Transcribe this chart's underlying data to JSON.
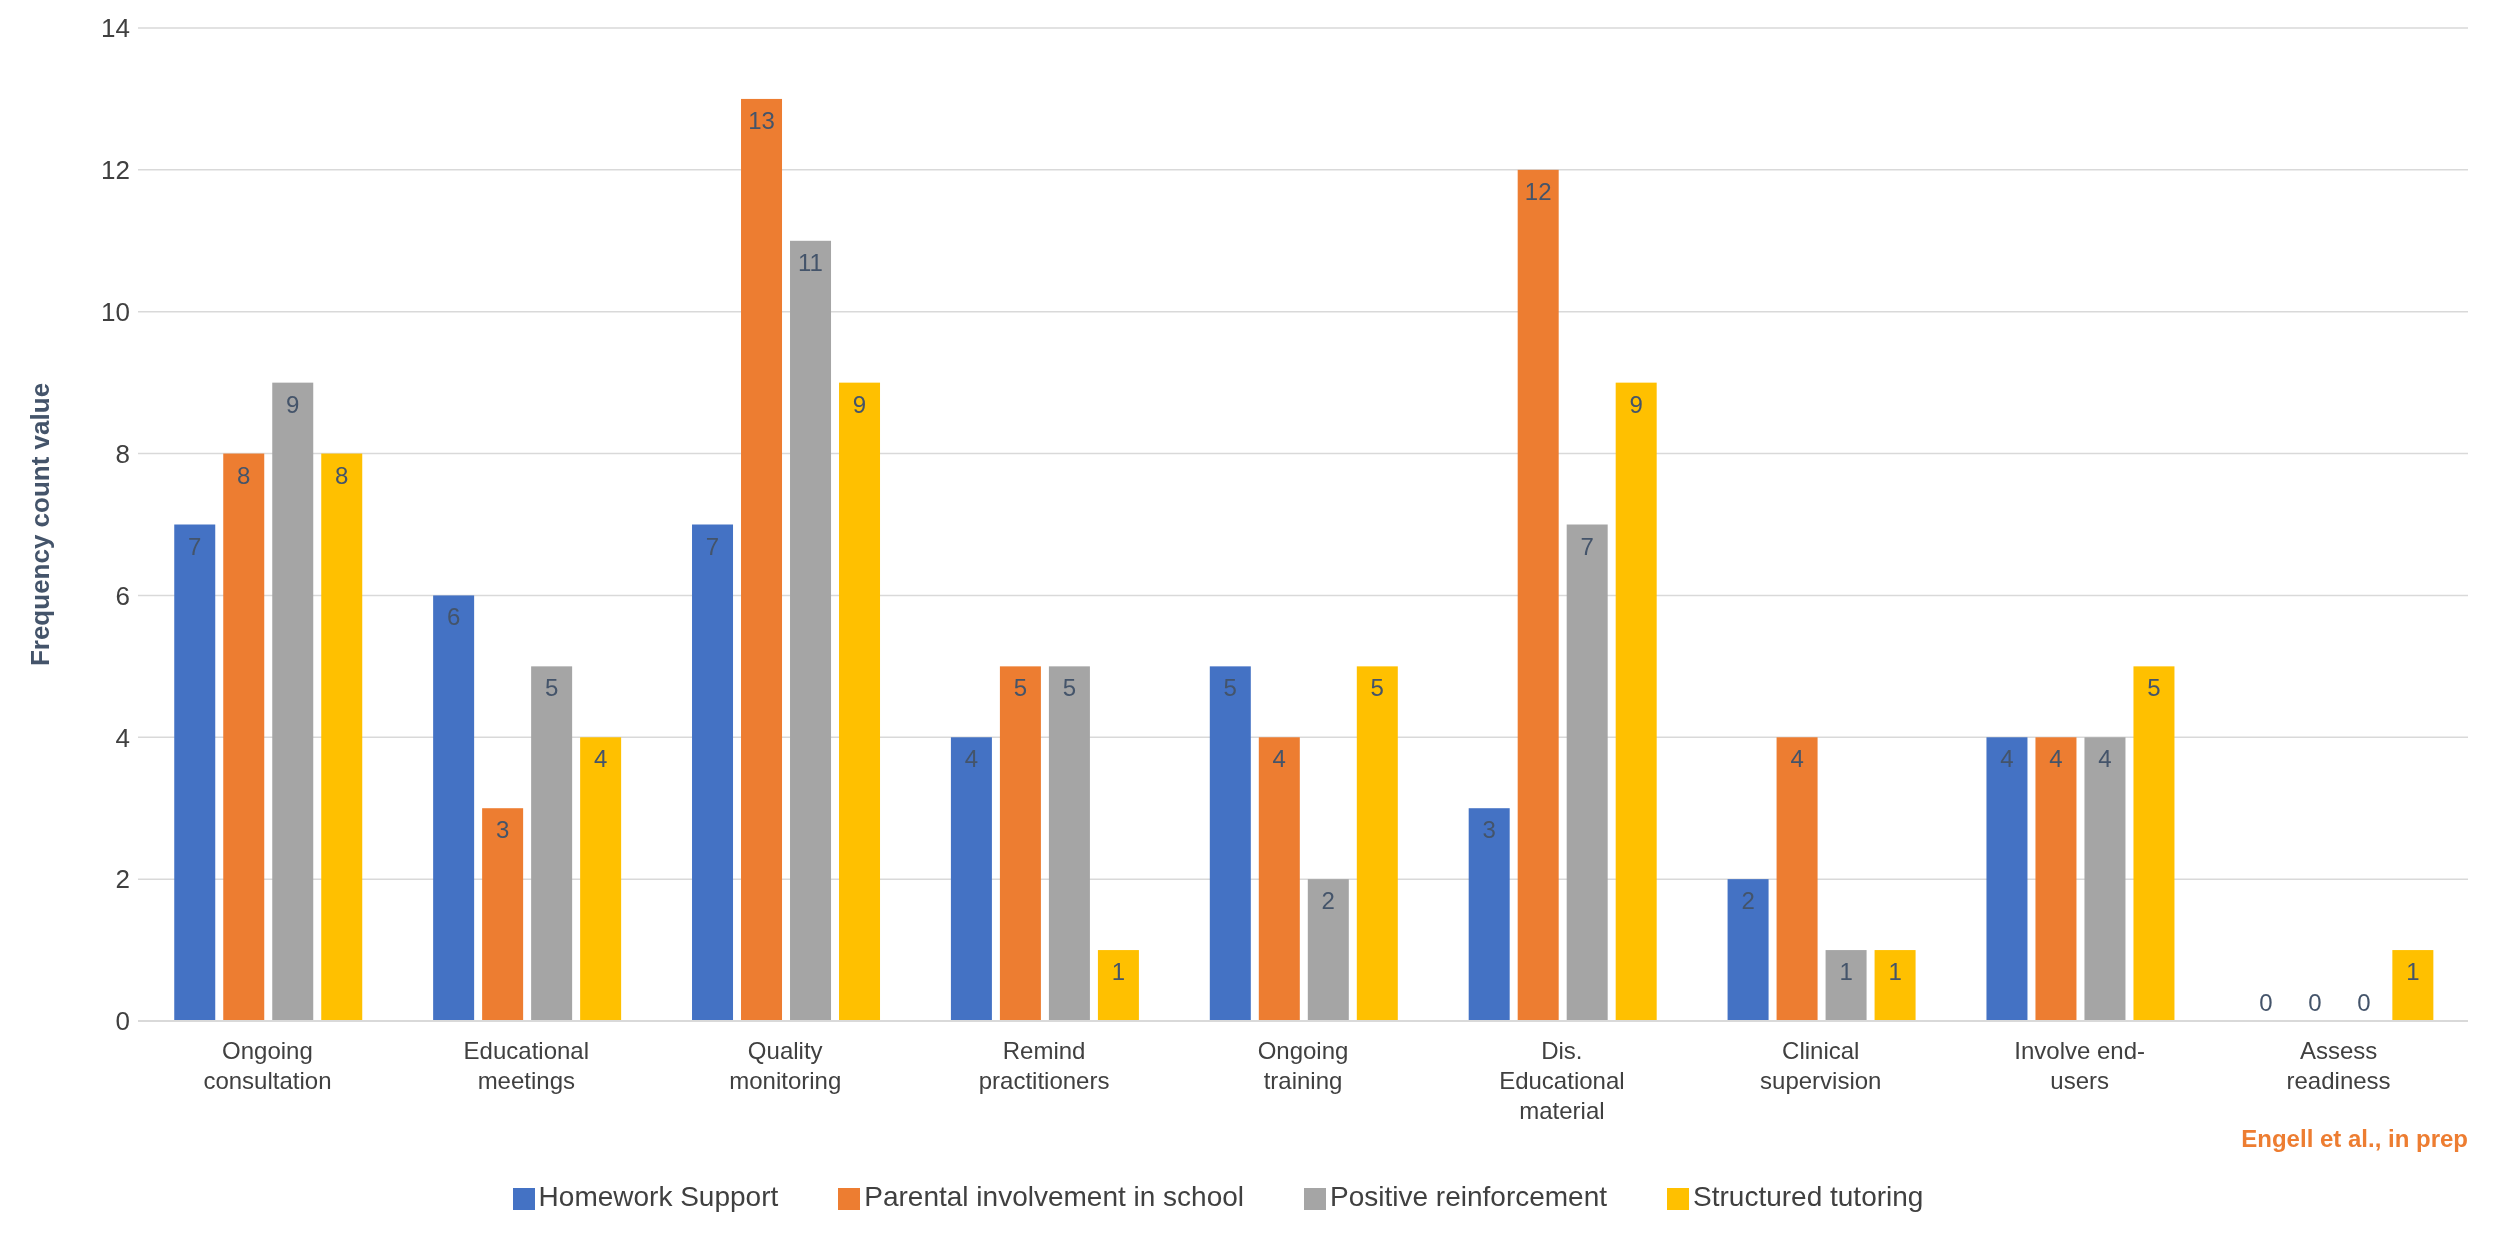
{
  "chart_data": {
    "type": "bar",
    "ylabel": "Frequency count value",
    "categories": [
      "Ongoing consultation",
      "Educational meetings",
      "Quality monitoring",
      "Remind practitioners",
      "Ongoing training",
      "Dis. Educational material",
      "Clinical supervision",
      "Involve end-users",
      "Assess readiness"
    ],
    "series": [
      {
        "name": "Homework Support",
        "color": "#4472c4",
        "values": [
          7,
          6,
          7,
          4,
          5,
          3,
          2,
          4,
          0
        ]
      },
      {
        "name": "Parental involvement in school",
        "color": "#ed7d31",
        "values": [
          8,
          3,
          13,
          5,
          4,
          12,
          4,
          4,
          0
        ]
      },
      {
        "name": "Positive reinforcement",
        "color": "#a5a5a5",
        "values": [
          9,
          5,
          11,
          5,
          2,
          7,
          1,
          4,
          0
        ]
      },
      {
        "name": "Structured tutoring",
        "color": "#ffc000",
        "values": [
          8,
          4,
          9,
          1,
          5,
          9,
          1,
          5,
          1
        ]
      }
    ],
    "ylim": [
      0,
      14
    ],
    "yticks": [
      0,
      2,
      4,
      6,
      8,
      10,
      12,
      14
    ],
    "grid": "y",
    "legend": "bottom",
    "data_labels": true,
    "annotations": [
      "Engell et al., in prep"
    ]
  }
}
